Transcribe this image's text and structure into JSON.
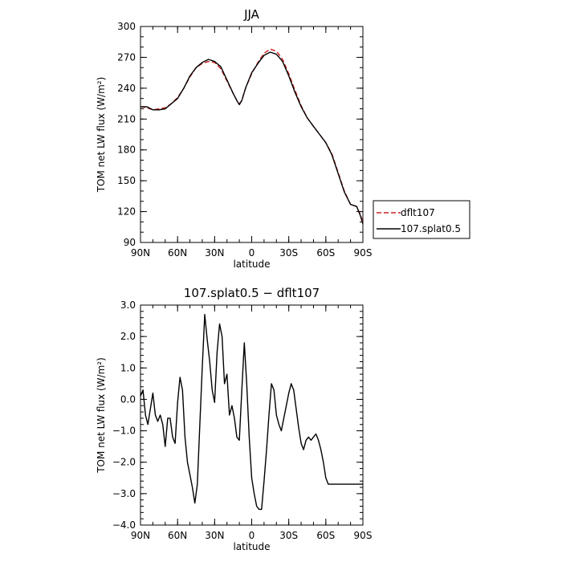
{
  "chart_data": [
    {
      "type": "line",
      "title": "JJA",
      "xlabel": "latitude",
      "ylabel": "TOM net LW flux (W/m²)",
      "xlim": [
        90,
        -90
      ],
      "ylim": [
        90,
        300
      ],
      "x_tick_values": [
        90,
        60,
        30,
        0,
        -30,
        -60,
        -90
      ],
      "x_tick_labels": [
        "90N",
        "60N",
        "30N",
        "0",
        "30S",
        "60S",
        "90S"
      ],
      "y_tick_values": [
        90,
        120,
        150,
        180,
        210,
        240,
        270,
        300
      ],
      "y_tick_labels": [
        "90",
        "120",
        "150",
        "180",
        "210",
        "240",
        "270",
        "300"
      ],
      "legend": {
        "placement": "right-outside"
      },
      "x": [
        90,
        85,
        80,
        75,
        70,
        65,
        60,
        55,
        50,
        45,
        40,
        35,
        30,
        25,
        20,
        15,
        12,
        10,
        8,
        5,
        0,
        -5,
        -10,
        -15,
        -20,
        -25,
        -30,
        -35,
        -40,
        -45,
        -50,
        -55,
        -60,
        -65,
        -70,
        -75,
        -80,
        -85,
        -88,
        -90
      ],
      "series": [
        {
          "name": "dflt107",
          "color": "#cc2222",
          "dash": "dashed",
          "values": [
            222,
            221,
            219,
            220,
            221,
            225,
            231,
            240,
            251,
            260,
            264,
            266,
            265,
            259,
            247,
            235,
            228,
            225,
            228,
            240,
            254,
            265,
            274,
            278,
            276,
            268,
            254,
            238,
            223,
            211,
            203,
            195,
            187,
            176,
            158,
            140,
            127,
            125,
            117,
            110
          ]
        },
        {
          "name": "107.splat0.5",
          "color": "#000000",
          "dash": "solid",
          "values": [
            222,
            222,
            219,
            219,
            220,
            225,
            230,
            240,
            252,
            260,
            265,
            268,
            266,
            261,
            248,
            235,
            228,
            224,
            228,
            240,
            255,
            264,
            272,
            275,
            273,
            266,
            252,
            236,
            222,
            211,
            203,
            195,
            187,
            175,
            157,
            139,
            127,
            125,
            116,
            108
          ]
        }
      ]
    },
    {
      "type": "line",
      "title": "107.splat0.5 − dflt107",
      "xlabel": "latitude",
      "ylabel": "TOM net LW flux (W/m²)",
      "xlim": [
        90,
        -90
      ],
      "ylim": [
        -4.0,
        3.0
      ],
      "x_tick_values": [
        90,
        60,
        30,
        0,
        -30,
        -60,
        -90
      ],
      "x_tick_labels": [
        "90N",
        "60N",
        "30N",
        "0",
        "30S",
        "60S",
        "90S"
      ],
      "y_tick_values": [
        -4,
        -3,
        -2,
        -1,
        0,
        1,
        2,
        3
      ],
      "y_tick_labels": [
        "−4.0",
        "−3.0",
        "−2.0",
        "−1.0",
        "0.0",
        "1.0",
        "2.0",
        "3.0"
      ],
      "x": [
        90,
        88,
        86,
        84,
        82,
        80,
        78,
        76,
        74,
        72,
        70,
        68,
        66,
        64,
        62,
        60,
        58,
        56,
        54,
        52,
        50,
        48,
        46,
        44,
        42,
        40,
        38,
        36,
        34,
        32,
        30,
        28,
        26,
        24,
        22,
        20,
        18,
        16,
        14,
        12,
        10,
        8,
        6,
        4,
        2,
        0,
        -2,
        -4,
        -6,
        -8,
        -10,
        -12,
        -14,
        -16,
        -18,
        -20,
        -22,
        -24,
        -26,
        -28,
        -30,
        -32,
        -34,
        -36,
        -38,
        -40,
        -42,
        -44,
        -46,
        -48,
        -50,
        -52,
        -54,
        -56,
        -58,
        -60,
        -62,
        -64,
        -66,
        -68,
        -70,
        -72,
        -74,
        -76,
        -78,
        -80,
        -82,
        -84,
        -86,
        -88,
        -90
      ],
      "series": [
        {
          "name": "",
          "color": "#000000",
          "dash": "solid",
          "values": [
            0.1,
            0.3,
            -0.5,
            -0.8,
            -0.3,
            0.2,
            -0.5,
            -0.7,
            -0.5,
            -0.8,
            -1.5,
            -0.6,
            -0.6,
            -1.2,
            -1.4,
            -0.1,
            0.7,
            0.3,
            -1.2,
            -2.0,
            -2.4,
            -2.8,
            -3.3,
            -2.7,
            -0.8,
            1.0,
            2.7,
            1.9,
            1.2,
            0.3,
            -0.1,
            1.5,
            2.4,
            2.0,
            0.5,
            0.8,
            -0.5,
            -0.2,
            -0.6,
            -1.2,
            -1.3,
            0.3,
            1.8,
            0.5,
            -1.2,
            -2.5,
            -3.0,
            -3.4,
            -3.5,
            -3.5,
            -2.6,
            -1.6,
            -0.5,
            0.5,
            0.3,
            -0.5,
            -0.8,
            -1.0,
            -0.6,
            -0.2,
            0.2,
            0.5,
            0.3,
            -0.3,
            -0.9,
            -1.4,
            -1.6,
            -1.3,
            -1.2,
            -1.3,
            -1.2,
            -1.1,
            -1.3,
            -1.6,
            -2.0,
            -2.5,
            -2.7,
            -2.7,
            -2.7,
            -2.7,
            -2.7,
            -2.7,
            -2.7,
            -2.7,
            -2.7,
            -2.7,
            -2.7,
            -2.7,
            -2.7,
            -2.7,
            -2.7
          ]
        }
      ]
    }
  ]
}
